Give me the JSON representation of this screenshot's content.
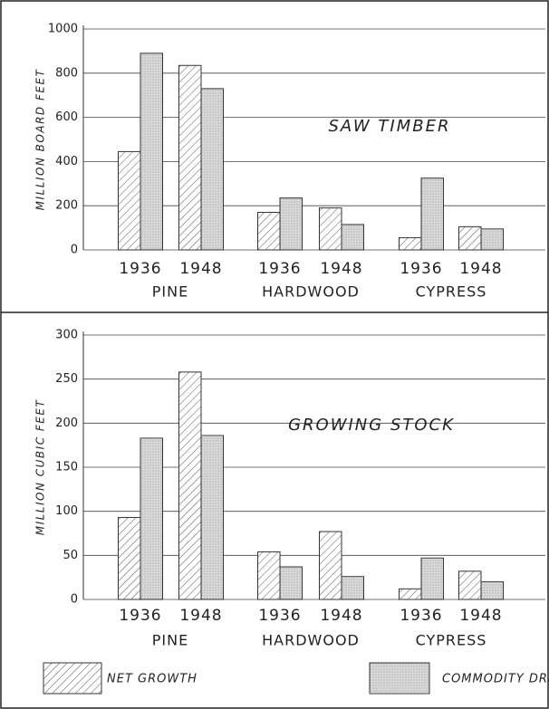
{
  "chart_data": [
    {
      "type": "bar",
      "title": "SAW TIMBER",
      "y_label": "MILLION BOARD FEET",
      "categories": [
        "1936",
        "1948",
        "1936",
        "1948",
        "1936",
        "1948"
      ],
      "groups": [
        "PINE",
        "HARDWOOD",
        "CYPRESS"
      ],
      "series": [
        {
          "name": "NET GROWTH",
          "color": "#ffffff",
          "values": [
            445,
            835,
            170,
            190,
            55,
            105
          ]
        },
        {
          "name": "COMMODITY DRAIN",
          "color": "#d9d9d9",
          "values": [
            890,
            730,
            235,
            115,
            325,
            95
          ]
        }
      ],
      "ylim": [
        0,
        1000
      ],
      "yticks": [
        0,
        200,
        400,
        600,
        800,
        1000
      ],
      "grid": true
    },
    {
      "type": "bar",
      "title": "GROWING STOCK",
      "y_label": "MILLION CUBIC FEET",
      "categories": [
        "1936",
        "1948",
        "1936",
        "1948",
        "1936",
        "1948"
      ],
      "groups": [
        "PINE",
        "HARDWOOD",
        "CYPRESS"
      ],
      "series": [
        {
          "name": "NET GROWTH",
          "color": "#ffffff",
          "values": [
            93,
            258,
            54,
            77,
            12,
            32
          ]
        },
        {
          "name": "COMMODITY DRAIN",
          "color": "#d9d9d9",
          "values": [
            183,
            186,
            37,
            26,
            47,
            20
          ]
        }
      ],
      "ylim": [
        0,
        300
      ],
      "yticks": [
        0,
        50,
        100,
        150,
        200,
        250,
        300
      ],
      "grid": true
    }
  ]
}
